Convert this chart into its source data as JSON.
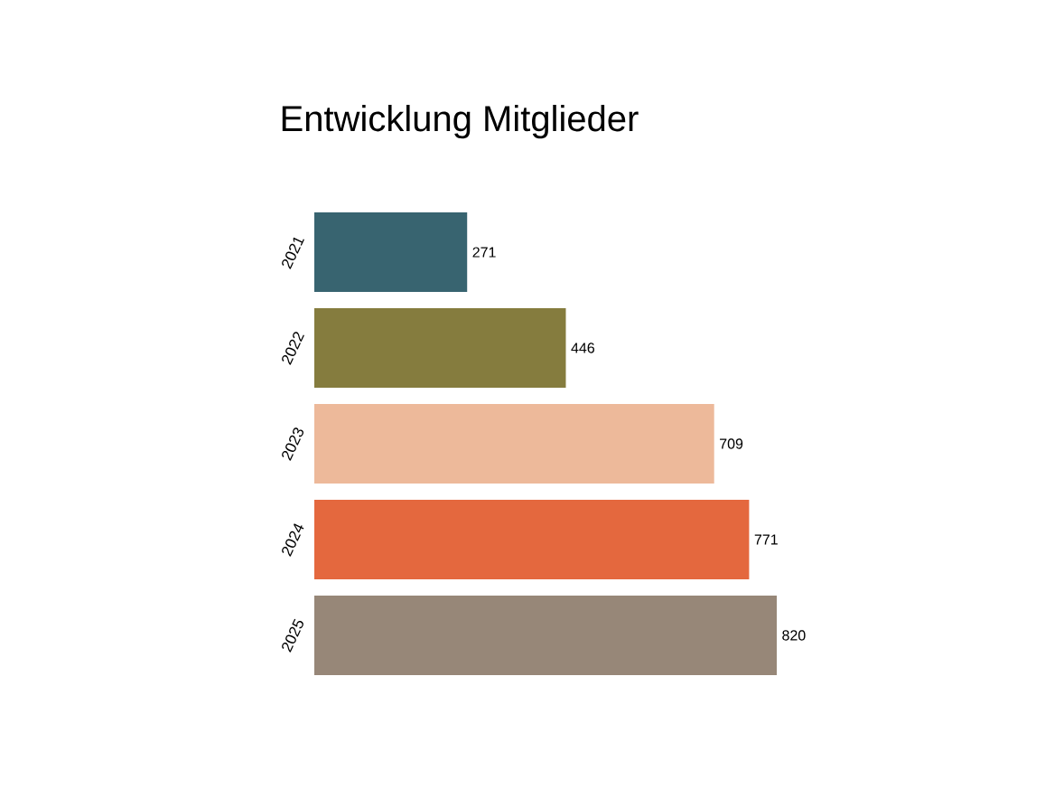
{
  "chart_data": {
    "type": "bar",
    "orientation": "horizontal",
    "title": "Entwicklung Mitglieder",
    "categories": [
      "2021",
      "2022",
      "2023",
      "2024",
      "2025"
    ],
    "values": [
      271,
      446,
      709,
      771,
      820
    ],
    "colors": [
      "#386470",
      "#857c3e",
      "#edb99a",
      "#e4683e",
      "#978778"
    ],
    "data_labels": true
  }
}
